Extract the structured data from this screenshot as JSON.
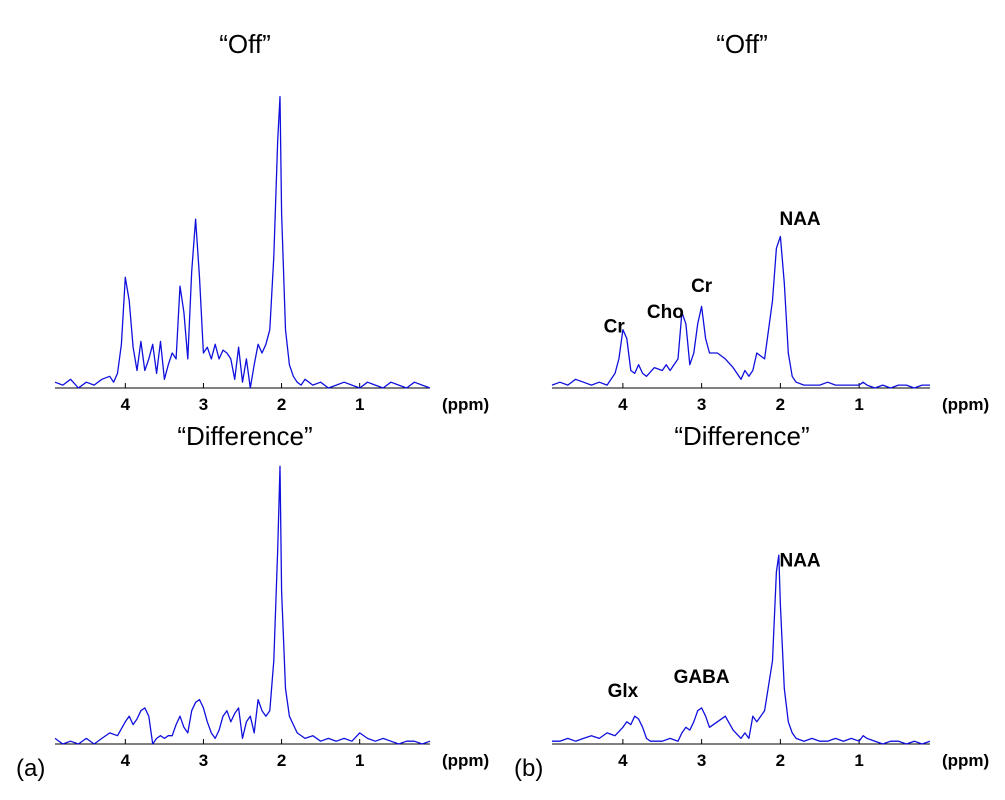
{
  "panel_labels": [
    "(a)",
    "(b)"
  ],
  "chart_data": [
    {
      "id": "a-off",
      "type": "line",
      "title": "“Off”",
      "xunit": "(ppm)",
      "xticks": [
        "4",
        "3",
        "2",
        "1"
      ],
      "xtick_values": [
        4,
        3,
        2,
        1
      ],
      "xlim": [
        4.9,
        0.1
      ],
      "ylim": [
        0,
        1.03
      ],
      "grid": false,
      "annotations": [],
      "series": [
        {
          "color": "#1010dd",
          "x": [
            4.9,
            4.8,
            4.7,
            4.6,
            4.5,
            4.4,
            4.3,
            4.2,
            4.15,
            4.1,
            4.05,
            4.0,
            3.95,
            3.9,
            3.85,
            3.8,
            3.75,
            3.7,
            3.65,
            3.6,
            3.55,
            3.5,
            3.45,
            3.4,
            3.35,
            3.3,
            3.25,
            3.2,
            3.15,
            3.1,
            3.05,
            3.0,
            2.95,
            2.9,
            2.85,
            2.8,
            2.75,
            2.7,
            2.65,
            2.6,
            2.55,
            2.5,
            2.45,
            2.4,
            2.35,
            2.3,
            2.25,
            2.2,
            2.15,
            2.1,
            2.05,
            2.02,
            2.0,
            1.95,
            1.9,
            1.85,
            1.8,
            1.75,
            1.7,
            1.6,
            1.5,
            1.4,
            1.3,
            1.2,
            1.1,
            1.0,
            0.9,
            0.8,
            0.7,
            0.6,
            0.5,
            0.4,
            0.3,
            0.2,
            0.1
          ],
          "y": [
            0.02,
            0.01,
            0.03,
            0.0,
            0.02,
            0.01,
            0.03,
            0.04,
            0.02,
            0.05,
            0.15,
            0.38,
            0.3,
            0.14,
            0.06,
            0.16,
            0.06,
            0.1,
            0.15,
            0.05,
            0.16,
            0.03,
            0.08,
            0.12,
            0.1,
            0.35,
            0.26,
            0.1,
            0.4,
            0.58,
            0.38,
            0.12,
            0.14,
            0.1,
            0.15,
            0.1,
            0.13,
            0.12,
            0.1,
            0.03,
            0.14,
            0.02,
            0.1,
            0.0,
            0.08,
            0.15,
            0.12,
            0.15,
            0.2,
            0.45,
            0.85,
            1.0,
            0.6,
            0.2,
            0.08,
            0.04,
            0.02,
            0.01,
            0.03,
            0.01,
            0.02,
            0.0,
            0.01,
            0.02,
            0.01,
            0.0,
            0.02,
            0.01,
            0.0,
            0.02,
            0.01,
            0.0,
            0.02,
            0.01,
            0.0
          ]
        }
      ]
    },
    {
      "id": "b-off",
      "type": "line",
      "title": "“Off”",
      "xunit": "(ppm)",
      "xticks": [
        "4",
        "3",
        "2",
        "1"
      ],
      "xtick_values": [
        4,
        3,
        2,
        1
      ],
      "xlim": [
        4.9,
        0.1
      ],
      "ylim": [
        0,
        1.03
      ],
      "grid": false,
      "annotations": [
        {
          "text": "Cr",
          "x": 4.11,
          "y": 0.19
        },
        {
          "text": "Cho",
          "x": 3.46,
          "y": 0.24
        },
        {
          "text": "Cr",
          "x": 3.0,
          "y": 0.33
        },
        {
          "text": "NAA",
          "x": 1.75,
          "y": 0.56
        }
      ],
      "series": [
        {
          "color": "#1010dd",
          "x": [
            4.9,
            4.8,
            4.7,
            4.6,
            4.5,
            4.4,
            4.3,
            4.2,
            4.1,
            4.05,
            4.0,
            3.95,
            3.9,
            3.85,
            3.8,
            3.75,
            3.7,
            3.6,
            3.5,
            3.45,
            3.4,
            3.3,
            3.25,
            3.2,
            3.15,
            3.1,
            3.05,
            3.0,
            2.95,
            2.9,
            2.8,
            2.7,
            2.6,
            2.5,
            2.45,
            2.4,
            2.35,
            2.3,
            2.2,
            2.1,
            2.05,
            2.0,
            1.95,
            1.9,
            1.85,
            1.8,
            1.7,
            1.6,
            1.5,
            1.4,
            1.3,
            1.2,
            1.1,
            1.0,
            0.95,
            0.9,
            0.8,
            0.7,
            0.6,
            0.5,
            0.4,
            0.3,
            0.2,
            0.1
          ],
          "y": [
            0.01,
            0.02,
            0.01,
            0.03,
            0.02,
            0.01,
            0.02,
            0.01,
            0.05,
            0.1,
            0.2,
            0.17,
            0.06,
            0.05,
            0.08,
            0.05,
            0.04,
            0.07,
            0.06,
            0.08,
            0.06,
            0.1,
            0.26,
            0.22,
            0.08,
            0.12,
            0.22,
            0.28,
            0.17,
            0.12,
            0.12,
            0.1,
            0.07,
            0.03,
            0.06,
            0.04,
            0.06,
            0.12,
            0.1,
            0.3,
            0.48,
            0.52,
            0.36,
            0.12,
            0.04,
            0.02,
            0.01,
            0.01,
            0.01,
            0.02,
            0.01,
            0.01,
            0.01,
            0.01,
            0.02,
            0.01,
            0.0,
            0.01,
            0.0,
            0.01,
            0.01,
            0.0,
            0.01,
            0.01
          ]
        }
      ]
    },
    {
      "id": "a-difference",
      "type": "line",
      "title": "“Difference”",
      "xunit": "(ppm)",
      "xticks": [
        "4",
        "3",
        "2",
        "1"
      ],
      "xtick_values": [
        4,
        3,
        2,
        1
      ],
      "xlim": [
        4.9,
        0.1
      ],
      "ylim": [
        0,
        1.03
      ],
      "grid": false,
      "annotations": [],
      "series": [
        {
          "color": "#1010dd",
          "x": [
            4.9,
            4.8,
            4.7,
            4.6,
            4.5,
            4.4,
            4.3,
            4.2,
            4.1,
            4.0,
            3.95,
            3.9,
            3.85,
            3.8,
            3.75,
            3.7,
            3.65,
            3.6,
            3.55,
            3.5,
            3.45,
            3.4,
            3.35,
            3.3,
            3.25,
            3.2,
            3.15,
            3.1,
            3.05,
            3.0,
            2.95,
            2.9,
            2.85,
            2.8,
            2.75,
            2.7,
            2.65,
            2.6,
            2.55,
            2.5,
            2.45,
            2.4,
            2.35,
            2.3,
            2.25,
            2.2,
            2.15,
            2.1,
            2.05,
            2.02,
            2.0,
            1.95,
            1.9,
            1.85,
            1.8,
            1.7,
            1.6,
            1.5,
            1.4,
            1.3,
            1.2,
            1.1,
            1.0,
            0.9,
            0.8,
            0.7,
            0.6,
            0.5,
            0.4,
            0.3,
            0.2,
            0.1
          ],
          "y": [
            0.02,
            0.0,
            0.01,
            0.0,
            0.02,
            0.0,
            0.02,
            0.04,
            0.03,
            0.08,
            0.1,
            0.07,
            0.09,
            0.12,
            0.13,
            0.1,
            0.0,
            0.02,
            0.03,
            0.02,
            0.03,
            0.03,
            0.07,
            0.1,
            0.06,
            0.04,
            0.12,
            0.15,
            0.16,
            0.13,
            0.08,
            0.04,
            0.02,
            0.05,
            0.1,
            0.12,
            0.08,
            0.11,
            0.13,
            0.02,
            0.08,
            0.1,
            0.04,
            0.16,
            0.12,
            0.1,
            0.12,
            0.3,
            0.7,
            1.0,
            0.55,
            0.2,
            0.1,
            0.07,
            0.04,
            0.02,
            0.03,
            0.01,
            0.02,
            0.01,
            0.02,
            0.01,
            0.04,
            0.02,
            0.01,
            0.02,
            0.01,
            0.0,
            0.01,
            0.01,
            0.0,
            0.01
          ]
        }
      ]
    },
    {
      "id": "b-difference",
      "type": "line",
      "title": "“Difference”",
      "xunit": "(ppm)",
      "xticks": [
        "4",
        "3",
        "2",
        "1"
      ],
      "xtick_values": [
        4,
        3,
        2,
        1
      ],
      "xlim": [
        4.9,
        0.1
      ],
      "ylim": [
        0,
        1.03
      ],
      "grid": false,
      "annotations": [
        {
          "text": "Glx",
          "x": 4.0,
          "y": 0.17
        },
        {
          "text": "GABA",
          "x": 3.0,
          "y": 0.22
        },
        {
          "text": "NAA",
          "x": 1.75,
          "y": 0.64
        }
      ],
      "series": [
        {
          "color": "#1010dd",
          "x": [
            4.9,
            4.8,
            4.7,
            4.6,
            4.5,
            4.4,
            4.3,
            4.2,
            4.1,
            4.0,
            3.95,
            3.9,
            3.85,
            3.8,
            3.75,
            3.7,
            3.65,
            3.6,
            3.5,
            3.4,
            3.3,
            3.25,
            3.2,
            3.15,
            3.1,
            3.05,
            3.0,
            2.95,
            2.9,
            2.8,
            2.7,
            2.6,
            2.5,
            2.45,
            2.4,
            2.35,
            2.3,
            2.2,
            2.1,
            2.05,
            2.02,
            2.0,
            1.95,
            1.9,
            1.85,
            1.8,
            1.7,
            1.6,
            1.5,
            1.4,
            1.3,
            1.2,
            1.1,
            1.0,
            0.95,
            0.9,
            0.8,
            0.7,
            0.6,
            0.5,
            0.4,
            0.3,
            0.2,
            0.1
          ],
          "y": [
            0.01,
            0.01,
            0.02,
            0.01,
            0.02,
            0.03,
            0.02,
            0.04,
            0.03,
            0.06,
            0.08,
            0.07,
            0.1,
            0.09,
            0.06,
            0.02,
            0.01,
            0.01,
            0.01,
            0.02,
            0.01,
            0.04,
            0.06,
            0.05,
            0.08,
            0.12,
            0.13,
            0.1,
            0.06,
            0.08,
            0.1,
            0.05,
            0.02,
            0.04,
            0.02,
            0.1,
            0.08,
            0.12,
            0.3,
            0.62,
            0.68,
            0.5,
            0.2,
            0.08,
            0.04,
            0.02,
            0.01,
            0.02,
            0.01,
            0.01,
            0.02,
            0.01,
            0.02,
            0.01,
            0.03,
            0.02,
            0.01,
            0.0,
            0.01,
            0.01,
            0.0,
            0.01,
            0.0,
            0.01
          ]
        }
      ]
    }
  ]
}
